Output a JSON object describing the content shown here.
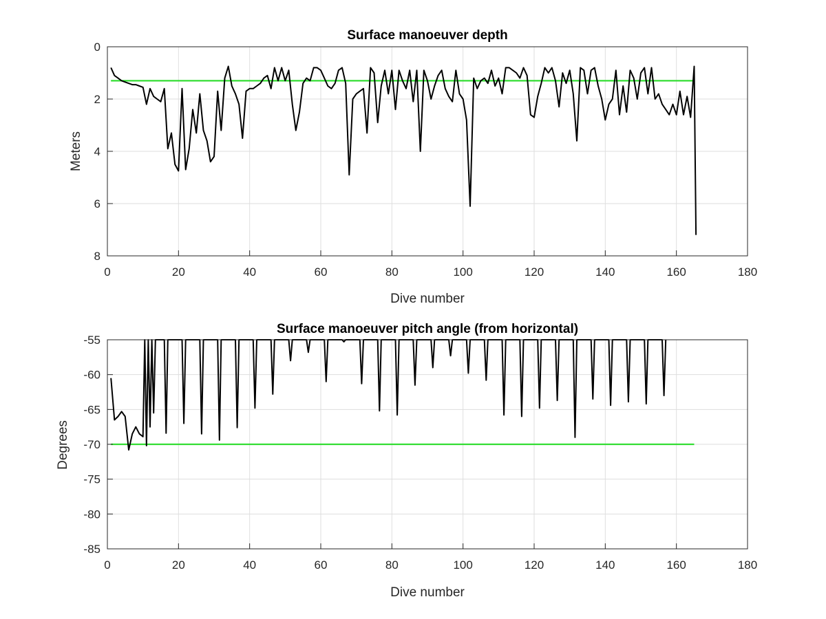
{
  "colors": {
    "series": "#000000",
    "threshold": "#33dd33",
    "grid": "#dedede",
    "axis": "#262626"
  },
  "chart_data": [
    {
      "type": "line",
      "title": "Surface manoeuver depth",
      "xlabel": "Dive number",
      "ylabel": "Meters",
      "xlim": [
        0,
        180
      ],
      "ylim": [
        0,
        8
      ],
      "y_reversed": true,
      "grid": true,
      "xticks": [
        "0",
        "20",
        "40",
        "60",
        "80",
        "100",
        "120",
        "140",
        "160",
        "180"
      ],
      "yticks": [
        "0",
        "2",
        "4",
        "6",
        "8"
      ],
      "threshold": {
        "value": 1.3,
        "x_range": [
          1,
          165
        ]
      },
      "series": [
        {
          "values": [
            [
              1,
              0.8
            ],
            [
              2,
              1.1
            ],
            [
              3,
              1.2
            ],
            [
              4,
              1.3
            ],
            [
              5,
              1.35
            ],
            [
              6,
              1.4
            ],
            [
              7,
              1.45
            ],
            [
              8,
              1.45
            ],
            [
              9,
              1.5
            ],
            [
              10,
              1.55
            ],
            [
              11,
              2.2
            ],
            [
              12,
              1.6
            ],
            [
              13,
              1.9
            ],
            [
              14,
              2.0
            ],
            [
              15,
              2.1
            ],
            [
              16,
              1.6
            ],
            [
              17,
              3.9
            ],
            [
              18,
              3.3
            ],
            [
              19,
              4.5
            ],
            [
              20,
              4.75
            ],
            [
              21,
              1.6
            ],
            [
              22,
              4.7
            ],
            [
              23,
              3.9
            ],
            [
              24,
              2.4
            ],
            [
              25,
              3.3
            ],
            [
              26,
              1.8
            ],
            [
              27,
              3.2
            ],
            [
              28,
              3.6
            ],
            [
              29,
              4.4
            ],
            [
              30,
              4.2
            ],
            [
              31,
              1.7
            ],
            [
              32,
              3.2
            ],
            [
              33,
              1.2
            ],
            [
              34,
              0.75
            ],
            [
              35,
              1.5
            ],
            [
              36,
              1.8
            ],
            [
              37,
              2.2
            ],
            [
              38,
              3.5
            ],
            [
              39,
              1.7
            ],
            [
              40,
              1.6
            ],
            [
              41,
              1.6
            ],
            [
              42,
              1.5
            ],
            [
              43,
              1.4
            ],
            [
              44,
              1.2
            ],
            [
              45,
              1.1
            ],
            [
              46,
              1.6
            ],
            [
              47,
              0.8
            ],
            [
              48,
              1.3
            ],
            [
              49,
              0.8
            ],
            [
              50,
              1.3
            ],
            [
              51,
              0.9
            ],
            [
              52,
              2.2
            ],
            [
              53,
              3.2
            ],
            [
              54,
              2.5
            ],
            [
              55,
              1.4
            ],
            [
              56,
              1.2
            ],
            [
              57,
              1.3
            ],
            [
              58,
              0.8
            ],
            [
              59,
              0.8
            ],
            [
              60,
              0.9
            ],
            [
              61,
              1.2
            ],
            [
              62,
              1.5
            ],
            [
              63,
              1.6
            ],
            [
              64,
              1.4
            ],
            [
              65,
              0.9
            ],
            [
              66,
              0.8
            ],
            [
              67,
              1.4
            ],
            [
              68,
              4.9
            ],
            [
              69,
              2.0
            ],
            [
              70,
              1.8
            ],
            [
              71,
              1.7
            ],
            [
              72,
              1.6
            ],
            [
              73,
              3.3
            ],
            [
              74,
              0.8
            ],
            [
              75,
              1.0
            ],
            [
              76,
              2.9
            ],
            [
              77,
              1.5
            ],
            [
              78,
              0.9
            ],
            [
              79,
              1.8
            ],
            [
              80,
              0.9
            ],
            [
              81,
              2.4
            ],
            [
              82,
              0.9
            ],
            [
              83,
              1.3
            ],
            [
              84,
              1.6
            ],
            [
              85,
              0.9
            ],
            [
              86,
              2.1
            ],
            [
              87,
              0.9
            ],
            [
              88,
              4.0
            ],
            [
              89,
              0.9
            ],
            [
              90,
              1.3
            ],
            [
              91,
              2.0
            ],
            [
              92,
              1.5
            ],
            [
              93,
              1.1
            ],
            [
              94,
              0.9
            ],
            [
              95,
              1.6
            ],
            [
              96,
              1.9
            ],
            [
              97,
              2.1
            ],
            [
              98,
              0.9
            ],
            [
              99,
              1.8
            ],
            [
              100,
              2.0
            ],
            [
              101,
              2.8
            ],
            [
              102,
              6.1
            ],
            [
              103,
              1.2
            ],
            [
              104,
              1.6
            ],
            [
              105,
              1.3
            ],
            [
              106,
              1.2
            ],
            [
              107,
              1.4
            ],
            [
              108,
              0.9
            ],
            [
              109,
              1.5
            ],
            [
              110,
              1.2
            ],
            [
              111,
              1.8
            ],
            [
              112,
              0.8
            ],
            [
              113,
              0.8
            ],
            [
              114,
              0.9
            ],
            [
              115,
              1.0
            ],
            [
              116,
              1.2
            ],
            [
              117,
              0.8
            ],
            [
              118,
              1.1
            ],
            [
              119,
              2.6
            ],
            [
              120,
              2.7
            ],
            [
              121,
              1.9
            ],
            [
              122,
              1.4
            ],
            [
              123,
              0.8
            ],
            [
              124,
              1.0
            ],
            [
              125,
              0.8
            ],
            [
              126,
              1.3
            ],
            [
              127,
              2.3
            ],
            [
              128,
              1.0
            ],
            [
              129,
              1.4
            ],
            [
              130,
              0.9
            ],
            [
              131,
              1.8
            ],
            [
              132,
              3.6
            ],
            [
              133,
              0.8
            ],
            [
              134,
              0.9
            ],
            [
              135,
              1.8
            ],
            [
              136,
              0.9
            ],
            [
              137,
              0.8
            ],
            [
              138,
              1.5
            ],
            [
              139,
              2.0
            ],
            [
              140,
              2.8
            ],
            [
              141,
              2.2
            ],
            [
              142,
              2.0
            ],
            [
              143,
              0.9
            ],
            [
              144,
              2.6
            ],
            [
              145,
              1.5
            ],
            [
              146,
              2.5
            ],
            [
              147,
              0.9
            ],
            [
              148,
              1.2
            ],
            [
              149,
              2.0
            ],
            [
              150,
              1.0
            ],
            [
              151,
              0.8
            ],
            [
              152,
              1.8
            ],
            [
              153,
              0.8
            ],
            [
              154,
              2.0
            ],
            [
              155,
              1.8
            ],
            [
              156,
              2.2
            ],
            [
              157,
              2.4
            ],
            [
              158,
              2.6
            ],
            [
              159,
              2.2
            ],
            [
              160,
              2.6
            ],
            [
              161,
              1.7
            ],
            [
              162,
              2.6
            ],
            [
              163,
              1.9
            ],
            [
              164,
              2.7
            ],
            [
              165,
              0.75
            ],
            [
              165.5,
              7.2
            ]
          ]
        }
      ]
    },
    {
      "type": "line",
      "title": "Surface manoeuver pitch angle (from horizontal)",
      "xlabel": "Dive number",
      "ylabel": "Degrees",
      "xlim": [
        0,
        180
      ],
      "ylim": [
        -85,
        -55
      ],
      "grid": true,
      "xticks": [
        "0",
        "20",
        "40",
        "60",
        "80",
        "100",
        "120",
        "140",
        "160",
        "180"
      ],
      "yticks": [
        "-55",
        "-60",
        "-65",
        "-70",
        "-75",
        "-80",
        "-85"
      ],
      "threshold": {
        "value": -70,
        "x_range": [
          1,
          165
        ]
      },
      "series": [
        {
          "values": [
            [
              1,
              -60.5
            ],
            [
              2,
              -66.5
            ],
            [
              3,
              -66.0
            ],
            [
              4,
              -65.3
            ],
            [
              5,
              -66.0
            ],
            [
              6,
              -70.8
            ],
            [
              7,
              -68.5
            ],
            [
              8,
              -67.5
            ],
            [
              9,
              -68.5
            ],
            [
              10,
              -68.9
            ],
            [
              10.5,
              -55
            ],
            [
              11,
              -70.2
            ],
            [
              11.5,
              -55
            ],
            [
              12,
              -67.5
            ],
            [
              12.5,
              -55
            ],
            [
              13,
              -65.5
            ],
            [
              13.5,
              -55
            ],
            [
              16,
              -55
            ],
            [
              16.5,
              -68.4
            ],
            [
              17,
              -55
            ],
            [
              21,
              -55
            ],
            [
              21.5,
              -67.0
            ],
            [
              22,
              -55
            ],
            [
              26,
              -55
            ],
            [
              26.5,
              -68.5
            ],
            [
              27,
              -55
            ],
            [
              31,
              -55
            ],
            [
              31.5,
              -69.4
            ],
            [
              32,
              -55
            ],
            [
              36,
              -55
            ],
            [
              36.5,
              -67.6
            ],
            [
              37,
              -55
            ],
            [
              41,
              -55
            ],
            [
              41.5,
              -64.8
            ],
            [
              42,
              -55
            ],
            [
              46,
              -55
            ],
            [
              46.5,
              -62.8
            ],
            [
              47,
              -55
            ],
            [
              51,
              -55
            ],
            [
              51.5,
              -58.0
            ],
            [
              52,
              -55
            ],
            [
              56,
              -55
            ],
            [
              56.5,
              -56.8
            ],
            [
              57,
              -55
            ],
            [
              61,
              -55
            ],
            [
              61.5,
              -61.0
            ],
            [
              62,
              -55
            ],
            [
              66,
              -55
            ],
            [
              66.5,
              -55.3
            ],
            [
              67,
              -55
            ],
            [
              71,
              -55
            ],
            [
              71.5,
              -61.3
            ],
            [
              72,
              -55
            ],
            [
              76,
              -55
            ],
            [
              76.5,
              -65.2
            ],
            [
              77,
              -55
            ],
            [
              81,
              -55
            ],
            [
              81.5,
              -65.8
            ],
            [
              82,
              -55
            ],
            [
              86,
              -55
            ],
            [
              86.5,
              -61.5
            ],
            [
              87,
              -55
            ],
            [
              91,
              -55
            ],
            [
              91.5,
              -59.0
            ],
            [
              92,
              -55
            ],
            [
              96,
              -55
            ],
            [
              96.5,
              -57.3
            ],
            [
              97,
              -55
            ],
            [
              101,
              -55
            ],
            [
              101.5,
              -59.8
            ],
            [
              102,
              -55
            ],
            [
              106,
              -55
            ],
            [
              106.5,
              -60.8
            ],
            [
              107,
              -55
            ],
            [
              111,
              -55
            ],
            [
              111.5,
              -65.8
            ],
            [
              112,
              -55
            ],
            [
              116,
              -55
            ],
            [
              116.5,
              -66.0
            ],
            [
              117,
              -55
            ],
            [
              121,
              -55
            ],
            [
              121.5,
              -64.8
            ],
            [
              122,
              -55
            ],
            [
              126,
              -55
            ],
            [
              126.5,
              -63.7
            ],
            [
              127,
              -55
            ],
            [
              131,
              -55
            ],
            [
              131.5,
              -69.0
            ],
            [
              132,
              -55
            ],
            [
              136,
              -55
            ],
            [
              136.5,
              -63.5
            ],
            [
              137,
              -55
            ],
            [
              141,
              -55
            ],
            [
              141.5,
              -64.4
            ],
            [
              142,
              -55
            ],
            [
              146,
              -55
            ],
            [
              146.5,
              -63.9
            ],
            [
              147,
              -55
            ],
            [
              151,
              -55
            ],
            [
              151.5,
              -64.2
            ],
            [
              152,
              -55
            ],
            [
              156,
              -55
            ],
            [
              156.5,
              -63.0
            ],
            [
              157,
              -55
            ]
          ]
        }
      ]
    }
  ]
}
